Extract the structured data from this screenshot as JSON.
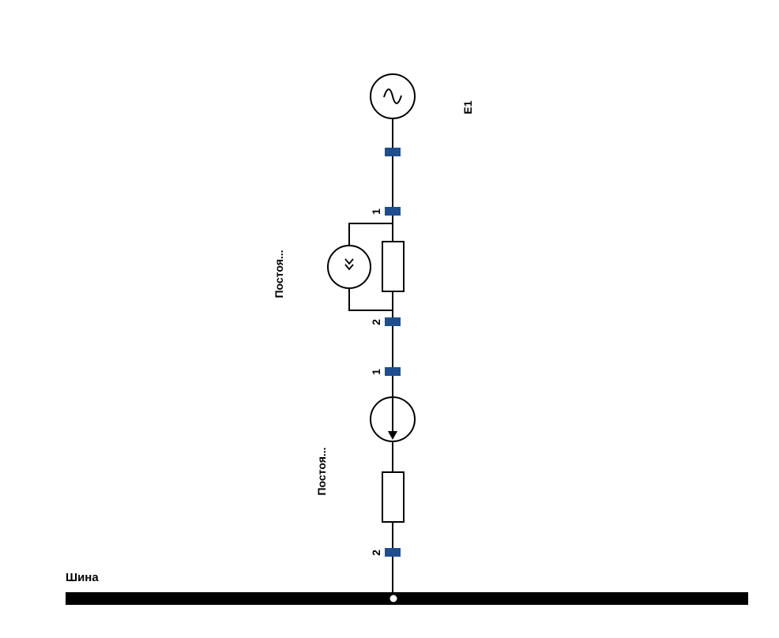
{
  "bus": {
    "label": "Шина",
    "color": "#000000"
  },
  "generator": {
    "label": "E1",
    "symbol": "sine-wave-icon"
  },
  "upper_branch": {
    "label": "Постоя...",
    "symbol": "double-chevron-source-icon",
    "terminal_top": "1",
    "terminal_bottom": "2"
  },
  "lower_branch": {
    "label": "Постоя...",
    "symbol": "current-source-arrow-icon",
    "terminal_top": "1",
    "terminal_bottom": "2"
  },
  "colors": {
    "terminal": "#1f4e8c",
    "wire": "#000000",
    "background": "#ffffff"
  }
}
